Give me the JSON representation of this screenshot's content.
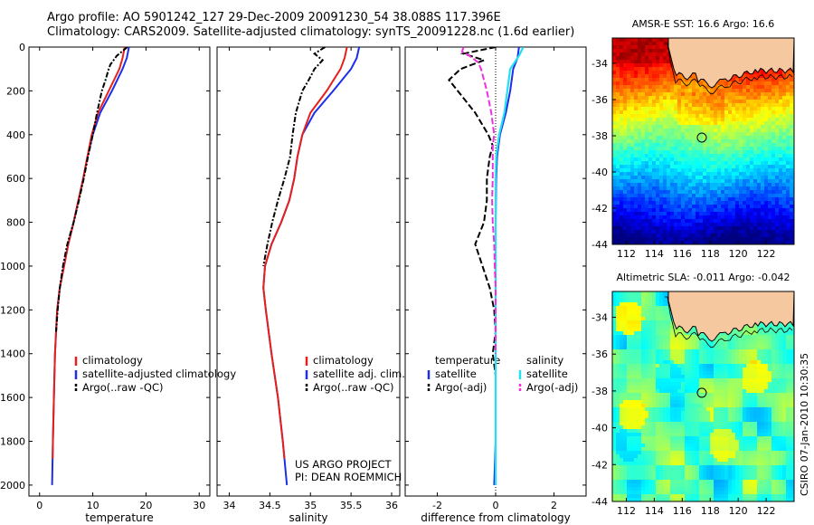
{
  "header": {
    "line1": "Argo profile: AO 5901242_127 29-Dec-2009 20091230_54 38.088S 117.396E",
    "line2": "Climatology: CARS2009. Satellite-adjusted climatology: synTS_20091228.nc (1.6d earlier)"
  },
  "side_label": "CSIRO 07-Jan-2010 10:30:35",
  "colors": {
    "climatology": "#e8201c",
    "satellite": "#1c2ee8",
    "argo": "#000000",
    "salinity_satellite": "#22e0f0",
    "salinity_argo": "#f030e0",
    "land": "#f6c8a0"
  },
  "chart_data": [
    {
      "type": "line",
      "xlabel": "temperature",
      "xlim": [
        -2,
        32
      ],
      "xticks": [
        "0",
        "10",
        "20",
        "30"
      ],
      "ylim": [
        0,
        2050
      ],
      "yticks": [
        "0",
        "200",
        "400",
        "600",
        "800",
        "1000",
        "1200",
        "1400",
        "1600",
        "1800",
        "2000"
      ],
      "legend": [
        {
          "label": "climatology"
        },
        {
          "label": "satellite-adjusted climatology"
        },
        {
          "label": "Argo(..raw -QC)"
        }
      ],
      "series": [
        {
          "name": "climatology",
          "depth": [
            0,
            50,
            100,
            200,
            300,
            400,
            500,
            600,
            700,
            800,
            900,
            1000,
            1100,
            1200,
            1400,
            1600,
            1800,
            1880
          ],
          "values": [
            16.0,
            15.6,
            15.0,
            13.0,
            11.0,
            9.8,
            9.0,
            8.2,
            7.3,
            6.4,
            5.4,
            4.6,
            3.8,
            3.3,
            2.9,
            2.7,
            2.5,
            2.45
          ]
        },
        {
          "name": "satellite-adjusted climatology",
          "depth": [
            0,
            50,
            100,
            200,
            300,
            400,
            500,
            600,
            700,
            800,
            900,
            1000,
            1100,
            1200,
            1400,
            1600,
            1800,
            2000
          ],
          "values": [
            16.8,
            16.4,
            15.6,
            13.6,
            11.4,
            10.0,
            9.0,
            8.2,
            7.3,
            6.4,
            5.4,
            4.6,
            3.8,
            3.3,
            2.9,
            2.7,
            2.5,
            2.35
          ]
        },
        {
          "name": "Argo(..raw -QC)",
          "depth": [
            0,
            40,
            80,
            100,
            150,
            200,
            300,
            400,
            500,
            600,
            700,
            800,
            900,
            1000,
            1100,
            1200,
            1300
          ],
          "values": [
            16.5,
            14.5,
            13.3,
            13.0,
            12.4,
            11.7,
            10.8,
            10.0,
            9.1,
            8.3,
            7.4,
            6.4,
            5.2,
            4.4,
            3.8,
            3.4,
            3.1
          ]
        }
      ]
    },
    {
      "type": "line",
      "xlabel": "salinity",
      "xlim": [
        33.85,
        36.1
      ],
      "xticks": [
        "34",
        "34.5",
        "35",
        "35.5",
        "36"
      ],
      "ylim": [
        0,
        2050
      ],
      "legend": [
        {
          "label": "climatology"
        },
        {
          "label": "satellite adj. clim."
        },
        {
          "label": "Argo(..raw -QC)"
        }
      ],
      "annotation": [
        "US ARGO PROJECT",
        "PI: DEAN ROEMMICH"
      ],
      "series": [
        {
          "name": "climatology",
          "depth": [
            0,
            50,
            100,
            200,
            300,
            400,
            500,
            600,
            700,
            800,
            900,
            1000,
            1100,
            1200,
            1400,
            1600,
            1800,
            1880
          ],
          "values": [
            35.45,
            35.42,
            35.37,
            35.2,
            35.0,
            34.9,
            34.84,
            34.8,
            34.74,
            34.64,
            34.52,
            34.44,
            34.42,
            34.45,
            34.52,
            34.6,
            34.66,
            34.68
          ]
        },
        {
          "name": "satellite adj. clim.",
          "depth": [
            0,
            50,
            100,
            200,
            300,
            400,
            500,
            600,
            700,
            800,
            900,
            1000,
            1100,
            1200,
            1400,
            1600,
            1800,
            2000
          ],
          "values": [
            35.6,
            35.57,
            35.5,
            35.28,
            35.05,
            34.9,
            34.84,
            34.8,
            34.74,
            34.64,
            34.52,
            34.44,
            34.42,
            34.45,
            34.52,
            34.6,
            34.66,
            34.71
          ]
        },
        {
          "name": "Argo(..raw -QC)",
          "depth": [
            0,
            30,
            60,
            100,
            150,
            200,
            300,
            400,
            500,
            600,
            700,
            800,
            900,
            1000
          ],
          "values": [
            35.18,
            35.05,
            35.15,
            35.05,
            34.98,
            34.9,
            34.82,
            34.78,
            34.75,
            34.68,
            34.6,
            34.53,
            34.47,
            34.42
          ]
        }
      ]
    },
    {
      "type": "line",
      "xlabel": "difference from climatology",
      "xlim": [
        -3.1,
        3.1
      ],
      "xticks": [
        "-2",
        "0",
        "2"
      ],
      "ylim": [
        0,
        2050
      ],
      "legend_left_title": "temperature",
      "legend_right_title": "salinity",
      "legend": [
        {
          "label": "satellite"
        },
        {
          "label": "Argo(-adj)"
        },
        {
          "label": "satellite"
        },
        {
          "label": "Argo(-adj)"
        }
      ],
      "series": [
        {
          "name": "temperature satellite",
          "depth": [
            0,
            50,
            100,
            200,
            300,
            400,
            500,
            600,
            800,
            1000,
            1200,
            1400,
            1600,
            1800,
            2000
          ],
          "values": [
            0.8,
            0.75,
            0.6,
            0.5,
            0.35,
            0.15,
            0.05,
            0.02,
            0.0,
            0.0,
            0.0,
            0.0,
            0.0,
            0.0,
            -0.05
          ]
        },
        {
          "name": "temperature Argo(-adj)",
          "depth": [
            0,
            30,
            60,
            100,
            150,
            200,
            300,
            400,
            450,
            500,
            600,
            700,
            800,
            900,
            1000,
            1100,
            1200,
            1300,
            1400,
            1500,
            1600,
            1700
          ],
          "values": [
            0.0,
            -1.1,
            -0.4,
            -1.2,
            -1.6,
            -1.3,
            -0.7,
            -0.25,
            -0.1,
            -0.2,
            -0.3,
            -0.3,
            -0.4,
            -0.7,
            -0.45,
            -0.2,
            -0.05,
            0.0,
            -0.1,
            0.0,
            0.0,
            0.0
          ]
        },
        {
          "name": "salinity satellite",
          "depth": [
            0,
            40,
            80,
            100,
            200,
            300,
            400,
            500,
            600,
            800,
            1000,
            1200,
            1400,
            1600,
            1800,
            2000
          ],
          "values": [
            0.95,
            0.8,
            0.6,
            0.5,
            0.4,
            0.3,
            0.12,
            0.02,
            0.0,
            0.0,
            0.0,
            0.0,
            0.0,
            0.0,
            0.0,
            0.0
          ]
        },
        {
          "name": "salinity Argo(-adj)",
          "depth": [
            0,
            20,
            40,
            70,
            100,
            150,
            200,
            300,
            400,
            450,
            500,
            600,
            700,
            800,
            900,
            1000,
            1100,
            1200,
            1300,
            1400
          ],
          "values": [
            -1.1,
            -1.15,
            -0.9,
            -0.6,
            -0.5,
            -0.4,
            -0.3,
            -0.15,
            -0.05,
            -0.1,
            -0.1,
            -0.1,
            -0.12,
            -0.1,
            -0.05,
            -0.03,
            0.0,
            0.0,
            0.0,
            0.0
          ]
        }
      ]
    },
    {
      "type": "heatmap",
      "title": "AMSR-E SST: 16.6  Argo: 16.6",
      "xlim": [
        111,
        124
      ],
      "ylim": [
        -44,
        -32.6
      ],
      "xticks": [
        "112",
        "114",
        "116",
        "118",
        "120",
        "122"
      ],
      "yticks": [
        "-34",
        "-36",
        "-38",
        "-40",
        "-42",
        "-44"
      ],
      "marker": {
        "lon": 117.4,
        "lat": -38.1
      }
    },
    {
      "type": "heatmap",
      "title": "Altimetric SLA: -0.011  Argo: -0.042",
      "xlim": [
        111,
        124
      ],
      "ylim": [
        -44,
        -32.6
      ],
      "xticks": [
        "112",
        "114",
        "116",
        "118",
        "120",
        "122"
      ],
      "yticks": [
        "-34",
        "-36",
        "-38",
        "-40",
        "-42",
        "-44"
      ],
      "marker": {
        "lon": 117.4,
        "lat": -38.1
      }
    }
  ]
}
